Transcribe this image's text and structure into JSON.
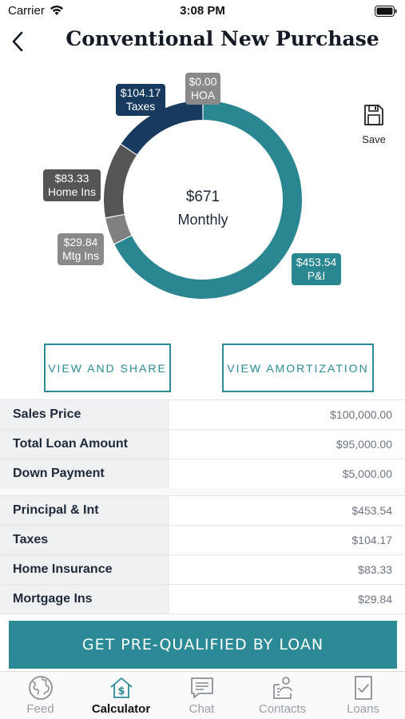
{
  "status": {
    "carrier": "Carrier",
    "time": "3:08 PM"
  },
  "nav": {
    "title": "Conventional New Purchase",
    "back_icon": "chevron-left-icon"
  },
  "chart": {
    "center_amount": "$671",
    "center_label": "Monthly",
    "segments": [
      {
        "name": "P&I",
        "value": 453.54,
        "amount_text": "$453.54",
        "label_text": "P&I",
        "color": "#2a8690",
        "label_bg": "#2a8690"
      },
      {
        "name": "Mtg Ins",
        "value": 29.84,
        "amount_text": "$29.84",
        "label_text": "Mtg Ins",
        "color": "#808080",
        "label_bg": "#8a8a8a"
      },
      {
        "name": "Home Ins",
        "value": 83.33,
        "amount_text": "$83.33",
        "label_text": "Home Ins",
        "color": "#555555",
        "label_bg": "#555555"
      },
      {
        "name": "Taxes",
        "value": 104.17,
        "amount_text": "$104.17",
        "label_text": "Taxes",
        "color": "#183a5e",
        "label_bg": "#183a5e"
      },
      {
        "name": "HOA",
        "value": 0.0,
        "amount_text": "$0.00",
        "label_text": "HOA",
        "color": "#8a8a8a",
        "label_bg": "#8a8a8a"
      }
    ]
  },
  "save": {
    "label": "Save",
    "icon": "floppy-disk-icon"
  },
  "buttons": {
    "share": "VIEW AND SHARE",
    "amortization": "VIEW AMORTIZATION"
  },
  "loan_details": [
    {
      "label": "Sales Price",
      "value": "$100,000.00"
    },
    {
      "label": "Total Loan Amount",
      "value": "$95,000.00"
    },
    {
      "label": "Down Payment",
      "value": "$5,000.00"
    }
  ],
  "payment_details": [
    {
      "label": "Principal & Int",
      "value": "$453.54"
    },
    {
      "label": "Taxes",
      "value": "$104.17"
    },
    {
      "label": "Home Insurance",
      "value": "$83.33"
    },
    {
      "label": "Mortgage Ins",
      "value": "$29.84"
    }
  ],
  "cta": {
    "label": "GET PRE-QUALIFIED BY LOAN"
  },
  "tabs": [
    {
      "label": "Feed",
      "icon": "globe-icon",
      "active": false
    },
    {
      "label": "Calculator",
      "icon": "house-dollar-icon",
      "active": true
    },
    {
      "label": "Chat",
      "icon": "chat-bubble-icon",
      "active": false
    },
    {
      "label": "Contacts",
      "icon": "contacts-icon",
      "active": false
    },
    {
      "label": "Loans",
      "icon": "document-check-icon",
      "active": false
    }
  ],
  "colors": {
    "accent": "#2c8a96",
    "navy": "#183a5e"
  }
}
